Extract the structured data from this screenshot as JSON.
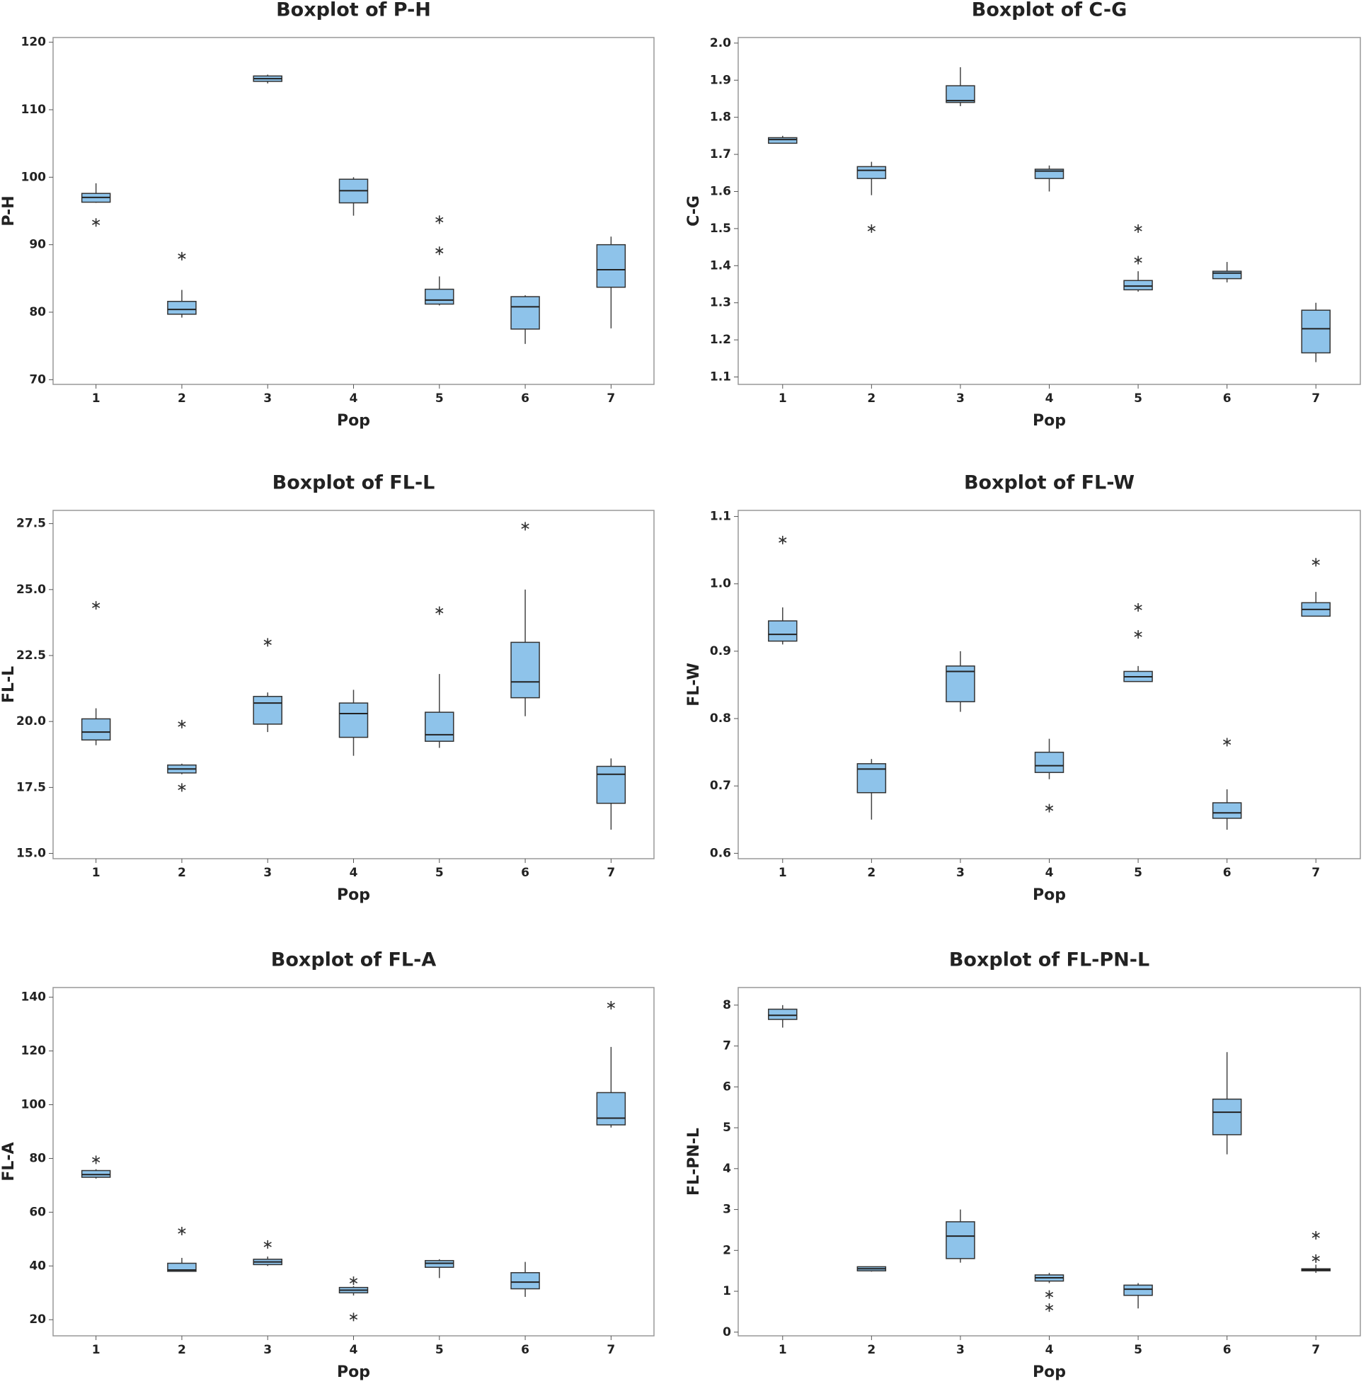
{
  "chart_data": [
    {
      "type": "box",
      "title": "Boxplot of P-H",
      "xlabel": "Pop",
      "ylabel": "P-H",
      "color": "#8ec3ea",
      "categories": [
        "1",
        "2",
        "3",
        "4",
        "5",
        "6",
        "7"
      ],
      "boxes": [
        {
          "min": 96.2,
          "q1": 96.3,
          "median": 97.0,
          "q3": 97.6,
          "max": 99.1,
          "outliers": [
            93.3
          ]
        },
        {
          "min": 79.2,
          "q1": 79.7,
          "median": 80.4,
          "q3": 81.6,
          "max": 83.3,
          "outliers": [
            88.3
          ]
        },
        {
          "min": 113.9,
          "q1": 114.2,
          "median": 114.6,
          "q3": 115.0,
          "max": 115.2,
          "outliers": []
        },
        {
          "min": 94.3,
          "q1": 96.2,
          "median": 98.0,
          "q3": 99.7,
          "max": 100.0,
          "outliers": []
        },
        {
          "min": 81.0,
          "q1": 81.2,
          "median": 81.8,
          "q3": 83.4,
          "max": 85.3,
          "outliers": [
            93.7,
            89.1
          ]
        },
        {
          "min": 75.3,
          "q1": 77.5,
          "median": 80.8,
          "q3": 82.3,
          "max": 82.5,
          "outliers": []
        },
        {
          "min": 77.6,
          "q1": 83.7,
          "median": 86.3,
          "q3": 90.0,
          "max": 91.2,
          "outliers": []
        }
      ],
      "ylim": [
        69.3,
        120.7
      ],
      "yticks": [
        70,
        80,
        90,
        100,
        110,
        120
      ]
    },
    {
      "type": "box",
      "title": "Boxplot of C-G",
      "xlabel": "Pop",
      "ylabel": "C-G",
      "color": "#8ec3ea",
      "categories": [
        "1",
        "2",
        "3",
        "4",
        "5",
        "6",
        "7"
      ],
      "boxes": [
        {
          "min": 1.73,
          "q1": 1.73,
          "median": 1.74,
          "q3": 1.745,
          "max": 1.75,
          "outliers": []
        },
        {
          "min": 1.59,
          "q1": 1.635,
          "median": 1.657,
          "q3": 1.667,
          "max": 1.68,
          "outliers": [
            1.5
          ]
        },
        {
          "min": 1.83,
          "q1": 1.84,
          "median": 1.845,
          "q3": 1.885,
          "max": 1.935,
          "outliers": []
        },
        {
          "min": 1.6,
          "q1": 1.635,
          "median": 1.655,
          "q3": 1.66,
          "max": 1.67,
          "outliers": []
        },
        {
          "min": 1.33,
          "q1": 1.335,
          "median": 1.345,
          "q3": 1.36,
          "max": 1.385,
          "outliers": [
            1.5,
            1.415
          ]
        },
        {
          "min": 1.355,
          "q1": 1.365,
          "median": 1.38,
          "q3": 1.385,
          "max": 1.41,
          "outliers": []
        },
        {
          "min": 1.14,
          "q1": 1.165,
          "median": 1.23,
          "q3": 1.28,
          "max": 1.3,
          "outliers": []
        }
      ],
      "ylim": [
        1.08,
        2.015
      ],
      "yticks": [
        1.1,
        1.2,
        1.3,
        1.4,
        1.5,
        1.6,
        1.7,
        1.8,
        1.9,
        {
          "value": 2,
          "label": "2.0"
        }
      ]
    },
    {
      "type": "box",
      "title": "Boxplot of FL-L",
      "xlabel": "Pop",
      "ylabel": "FL-L",
      "color": "#8ec3ea",
      "categories": [
        "1",
        "2",
        "3",
        "4",
        "5",
        "6",
        "7"
      ],
      "boxes": [
        {
          "min": 19.1,
          "q1": 19.3,
          "median": 19.6,
          "q3": 20.1,
          "max": 20.5,
          "outliers": [
            24.4
          ]
        },
        {
          "min": 18.0,
          "q1": 18.05,
          "median": 18.2,
          "q3": 18.35,
          "max": 18.4,
          "outliers": [
            19.9,
            17.5
          ]
        },
        {
          "min": 19.6,
          "q1": 19.9,
          "median": 20.7,
          "q3": 20.95,
          "max": 21.1,
          "outliers": [
            23.0
          ]
        },
        {
          "min": 18.7,
          "q1": 19.4,
          "median": 20.3,
          "q3": 20.7,
          "max": 21.2,
          "outliers": []
        },
        {
          "min": 19.0,
          "q1": 19.25,
          "median": 19.5,
          "q3": 20.35,
          "max": 21.8,
          "outliers": [
            24.2
          ]
        },
        {
          "min": 20.2,
          "q1": 20.9,
          "median": 21.5,
          "q3": 23.0,
          "max": 25.0,
          "outliers": [
            27.4
          ]
        },
        {
          "min": 15.9,
          "q1": 16.9,
          "median": 18.0,
          "q3": 18.3,
          "max": 18.6,
          "outliers": []
        }
      ],
      "ylim": [
        14.8,
        28.0
      ],
      "yticks": [
        {
          "value": 15,
          "label": "15.0"
        },
        17.5,
        {
          "value": 20,
          "label": "20.0"
        },
        22.5,
        {
          "value": 25,
          "label": "25.0"
        },
        27.5
      ]
    },
    {
      "type": "box",
      "title": "Boxplot of FL-W",
      "xlabel": "Pop",
      "ylabel": "FL-W",
      "color": "#8ec3ea",
      "categories": [
        "1",
        "2",
        "3",
        "4",
        "5",
        "6",
        "7"
      ],
      "boxes": [
        {
          "min": 0.91,
          "q1": 0.915,
          "median": 0.925,
          "q3": 0.945,
          "max": 0.965,
          "outliers": [
            1.065
          ]
        },
        {
          "min": 0.65,
          "q1": 0.69,
          "median": 0.725,
          "q3": 0.733,
          "max": 0.74,
          "outliers": []
        },
        {
          "min": 0.81,
          "q1": 0.825,
          "median": 0.87,
          "q3": 0.878,
          "max": 0.9,
          "outliers": []
        },
        {
          "min": 0.71,
          "q1": 0.72,
          "median": 0.73,
          "q3": 0.75,
          "max": 0.77,
          "outliers": [
            0.667
          ]
        },
        {
          "min": 0.855,
          "q1": 0.855,
          "median": 0.862,
          "q3": 0.87,
          "max": 0.878,
          "outliers": [
            0.965,
            0.925
          ]
        },
        {
          "min": 0.635,
          "q1": 0.652,
          "median": 0.66,
          "q3": 0.675,
          "max": 0.695,
          "outliers": [
            0.765
          ]
        },
        {
          "min": 0.952,
          "q1": 0.952,
          "median": 0.962,
          "q3": 0.972,
          "max": 0.988,
          "outliers": [
            1.032
          ]
        }
      ],
      "ylim": [
        0.592,
        1.109
      ],
      "yticks": [
        0.6,
        0.7,
        0.8,
        0.9,
        {
          "value": 1,
          "label": "1.0"
        },
        1.1
      ]
    },
    {
      "type": "box",
      "title": "Boxplot of FL-A",
      "xlabel": "Pop",
      "ylabel": "FL-A",
      "color": "#8ec3ea",
      "categories": [
        "1",
        "2",
        "3",
        "4",
        "5",
        "6",
        "7"
      ],
      "boxes": [
        {
          "min": 72.5,
          "q1": 73,
          "median": 74,
          "q3": 75.5,
          "max": 76,
          "outliers": [
            79.5
          ]
        },
        {
          "min": 38,
          "q1": 38,
          "median": 38.5,
          "q3": 41,
          "max": 43,
          "outliers": [
            53
          ]
        },
        {
          "min": 40,
          "q1": 40.5,
          "median": 41.5,
          "q3": 42.5,
          "max": 43.5,
          "outliers": [
            48
          ]
        },
        {
          "min": 29,
          "q1": 30,
          "median": 31,
          "q3": 32,
          "max": 32.5,
          "outliers": [
            34.5,
            21
          ]
        },
        {
          "min": 35.5,
          "q1": 39.5,
          "median": 41,
          "q3": 42,
          "max": 42.5,
          "outliers": []
        },
        {
          "min": 28.5,
          "q1": 31.5,
          "median": 34,
          "q3": 37.5,
          "max": 41.5,
          "outliers": []
        },
        {
          "min": 91.5,
          "q1": 92.5,
          "median": 95,
          "q3": 104.5,
          "max": 121.5,
          "outliers": [
            137
          ]
        }
      ],
      "ylim": [
        14,
        143.6
      ],
      "yticks": [
        20,
        40,
        60,
        80,
        100,
        120,
        140
      ]
    },
    {
      "type": "box",
      "title": "Boxplot of FL-PN-L",
      "xlabel": "Pop",
      "ylabel": "FL-PN-L",
      "color": "#8ec3ea",
      "categories": [
        "1",
        "2",
        "3",
        "4",
        "5",
        "6",
        "7"
      ],
      "boxes": [
        {
          "min": 7.45,
          "q1": 7.65,
          "median": 7.75,
          "q3": 7.9,
          "max": 8.0,
          "outliers": []
        },
        {
          "min": 1.48,
          "q1": 1.5,
          "median": 1.55,
          "q3": 1.6,
          "max": 1.6,
          "outliers": []
        },
        {
          "min": 1.7,
          "q1": 1.8,
          "median": 2.35,
          "q3": 2.7,
          "max": 3.0,
          "outliers": []
        },
        {
          "min": 1.2,
          "q1": 1.25,
          "median": 1.33,
          "q3": 1.4,
          "max": 1.45,
          "outliers": [
            0.92,
            0.6
          ]
        },
        {
          "min": 0.58,
          "q1": 0.9,
          "median": 1.05,
          "q3": 1.15,
          "max": 1.2,
          "outliers": []
        },
        {
          "min": 4.35,
          "q1": 4.83,
          "median": 5.38,
          "q3": 5.7,
          "max": 6.85,
          "outliers": []
        },
        {
          "min": 1.45,
          "q1": 1.5,
          "median": 1.53,
          "q3": 1.55,
          "max": 1.65,
          "outliers": [
            2.37,
            1.8
          ]
        }
      ],
      "ylim": [
        -0.09,
        8.43
      ],
      "yticks": [
        0,
        1,
        2,
        3,
        4,
        5,
        6,
        7,
        8
      ]
    }
  ]
}
